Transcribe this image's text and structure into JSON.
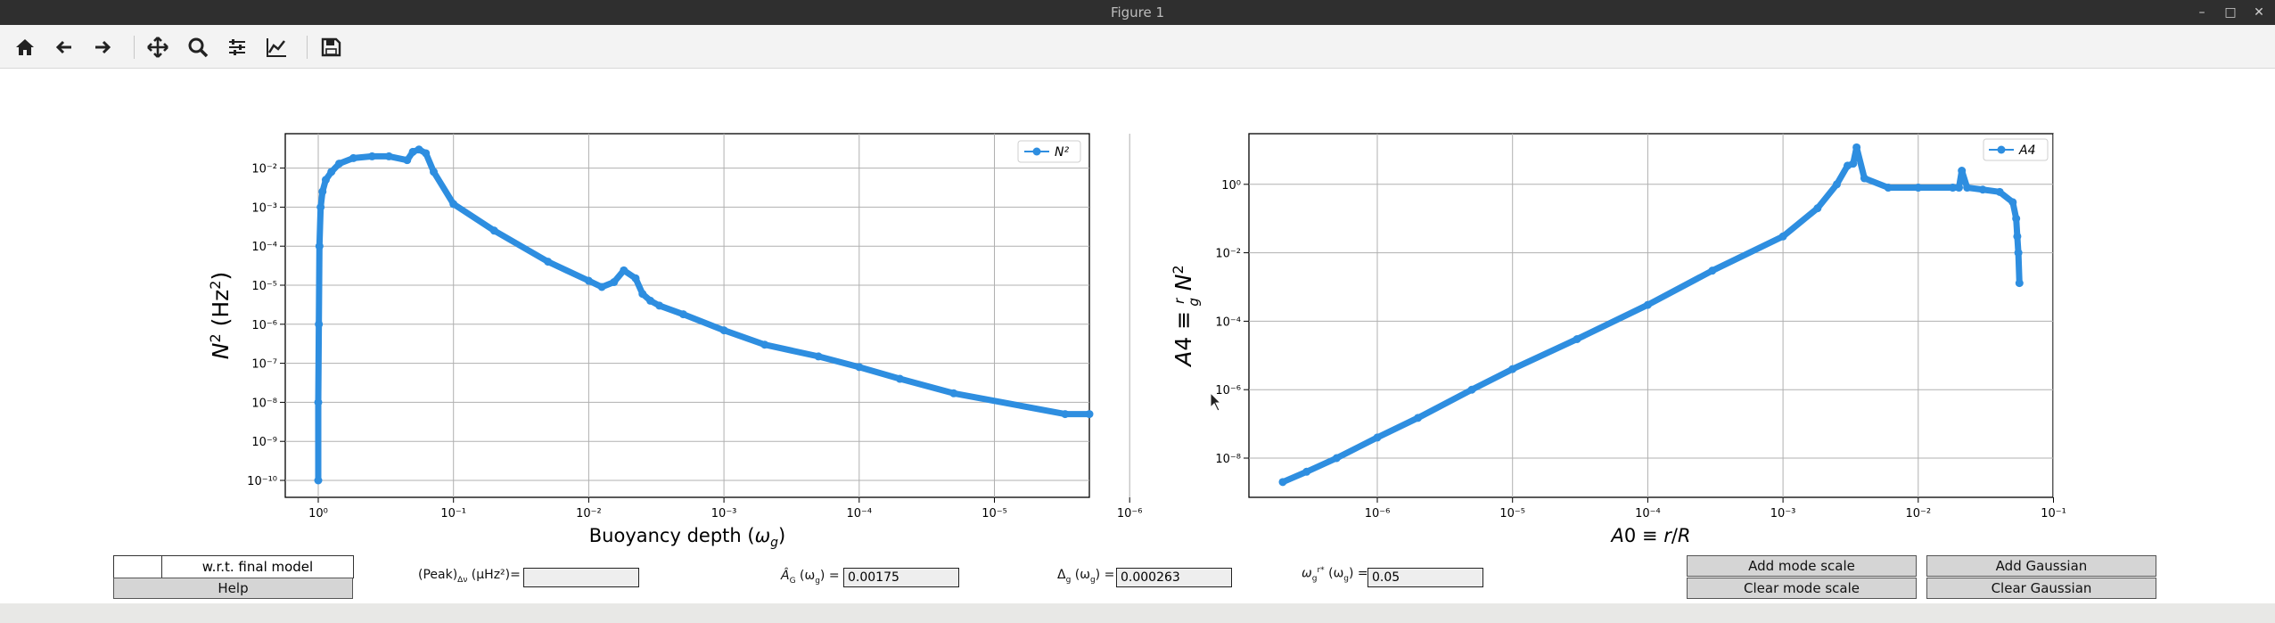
{
  "window": {
    "title": "Figure 1"
  },
  "toolbar": {
    "buttons": [
      "home-icon",
      "back-arrow-icon",
      "forward-arrow-icon",
      "pan-icon",
      "zoom-icon",
      "configure-subplots-icon",
      "edit-axis-icon",
      "save-icon"
    ]
  },
  "colors": {
    "series": "#2e8ee0",
    "grid": "#b0b0b0"
  },
  "chart_data": [
    {
      "type": "line",
      "xscale": "log",
      "yscale": "log",
      "xinverted": true,
      "xlabel": "Buoyancy depth (ω_g)",
      "ylabel": "N² (Hz²)",
      "xticks": [
        "10⁰",
        "10⁻¹",
        "10⁻²",
        "10⁻³",
        "10⁻⁴",
        "10⁻⁵",
        "10⁻⁶"
      ],
      "yticks": [
        "10⁻¹⁰",
        "10⁻⁹",
        "10⁻⁸",
        "10⁻⁷",
        "10⁻⁶",
        "10⁻⁵",
        "10⁻⁴",
        "10⁻³",
        "10⁻²"
      ],
      "legend": {
        "label": "N²",
        "position": "top-right"
      },
      "grid": true,
      "series": [
        {
          "name": "N²",
          "x": [
            1.0,
            1.0,
            0.99,
            0.98,
            0.96,
            0.93,
            0.88,
            0.8,
            0.7,
            0.55,
            0.4,
            0.3,
            0.22,
            0.2,
            0.18,
            0.16,
            0.14,
            0.1,
            0.05,
            0.02,
            0.01,
            0.008,
            0.0065,
            0.0055,
            0.0045,
            0.004,
            0.0035,
            0.003,
            0.002,
            0.001,
            0.0005,
            0.0002,
            0.0001,
            5e-05,
            2e-05,
            3e-06,
            1e-06
          ],
          "y": [
            1e-10,
            1e-08,
            1e-06,
            0.0001,
            0.001,
            0.0025,
            0.005,
            0.008,
            0.013,
            0.018,
            0.02,
            0.02,
            0.016,
            0.026,
            0.03,
            0.024,
            0.008,
            0.0012,
            0.00025,
            4e-05,
            1.3e-05,
            9e-06,
            1.2e-05,
            2.4e-05,
            1.5e-05,
            6e-06,
            4e-06,
            3e-06,
            1.8e-06,
            7e-07,
            3e-07,
            1.5e-07,
            8e-08,
            4e-08,
            1.7e-08,
            5e-09,
            5e-09
          ]
        }
      ]
    },
    {
      "type": "line",
      "xscale": "log",
      "yscale": "log",
      "xlabel": "A0 ≡ r/R",
      "ylabel": "A4 ≡ (r/g) N²",
      "xticks": [
        "10⁻⁶",
        "10⁻⁵",
        "10⁻⁴",
        "10⁻³",
        "10⁻²",
        "10⁻¹"
      ],
      "yticks": [
        "10⁻⁸",
        "10⁻⁶",
        "10⁻⁴",
        "10⁻²",
        "10⁰"
      ],
      "legend": {
        "label": "A4",
        "position": "top-right"
      },
      "grid": true,
      "series": [
        {
          "name": "A4",
          "x": [
            2e-07,
            3e-07,
            5e-07,
            1e-06,
            2e-06,
            5e-06,
            1e-05,
            3e-05,
            0.0001,
            0.0003,
            0.001,
            0.0018,
            0.0025,
            0.003,
            0.0033,
            0.0035,
            0.004,
            0.006,
            0.01,
            0.018,
            0.02,
            0.021,
            0.023,
            0.03,
            0.04,
            0.05,
            0.053,
            0.054,
            0.055,
            0.056
          ],
          "y": [
            2e-09,
            4e-09,
            1e-08,
            4e-08,
            1.5e-07,
            1e-06,
            4e-06,
            3e-05,
            0.0003,
            0.003,
            0.03,
            0.2,
            1.0,
            3.5,
            4.0,
            12,
            1.5,
            0.8,
            0.8,
            0.8,
            0.8,
            2.5,
            0.8,
            0.7,
            0.6,
            0.3,
            0.1,
            0.03,
            0.01,
            0.0013
          ]
        }
      ]
    }
  ],
  "controls": {
    "wrt_label": "w.r.t. final model",
    "help_label": "Help",
    "peak_label": "(Peak)",
    "peak_sub": "Δν",
    "peak_unit": " (μHz²)=",
    "peak_value": "",
    "ag_label": "Â",
    "ag_sub": "G",
    "ag_unit": " (ω",
    "ag_unit_sub": "g",
    "ag_end": ") =",
    "ag_value": "0.00175",
    "dg_label": "Δ",
    "dg_sub": "g",
    "dg_unit": " (ω",
    "dg_unit_sub": "g",
    "dg_end": ") =",
    "dg_value": "0.000263",
    "wg_label": "ω",
    "wg_sub": "g",
    "wg_sup": "r*",
    "wg_unit": " (ω",
    "wg_unit_sub": "g",
    "wg_end": ") =",
    "wg_value": "0.05",
    "add_mode_label": "Add mode scale",
    "clear_mode_label": "Clear mode scale",
    "add_gauss_label": "Add Gaussian",
    "clear_gauss_label": "Clear Gaussian"
  }
}
